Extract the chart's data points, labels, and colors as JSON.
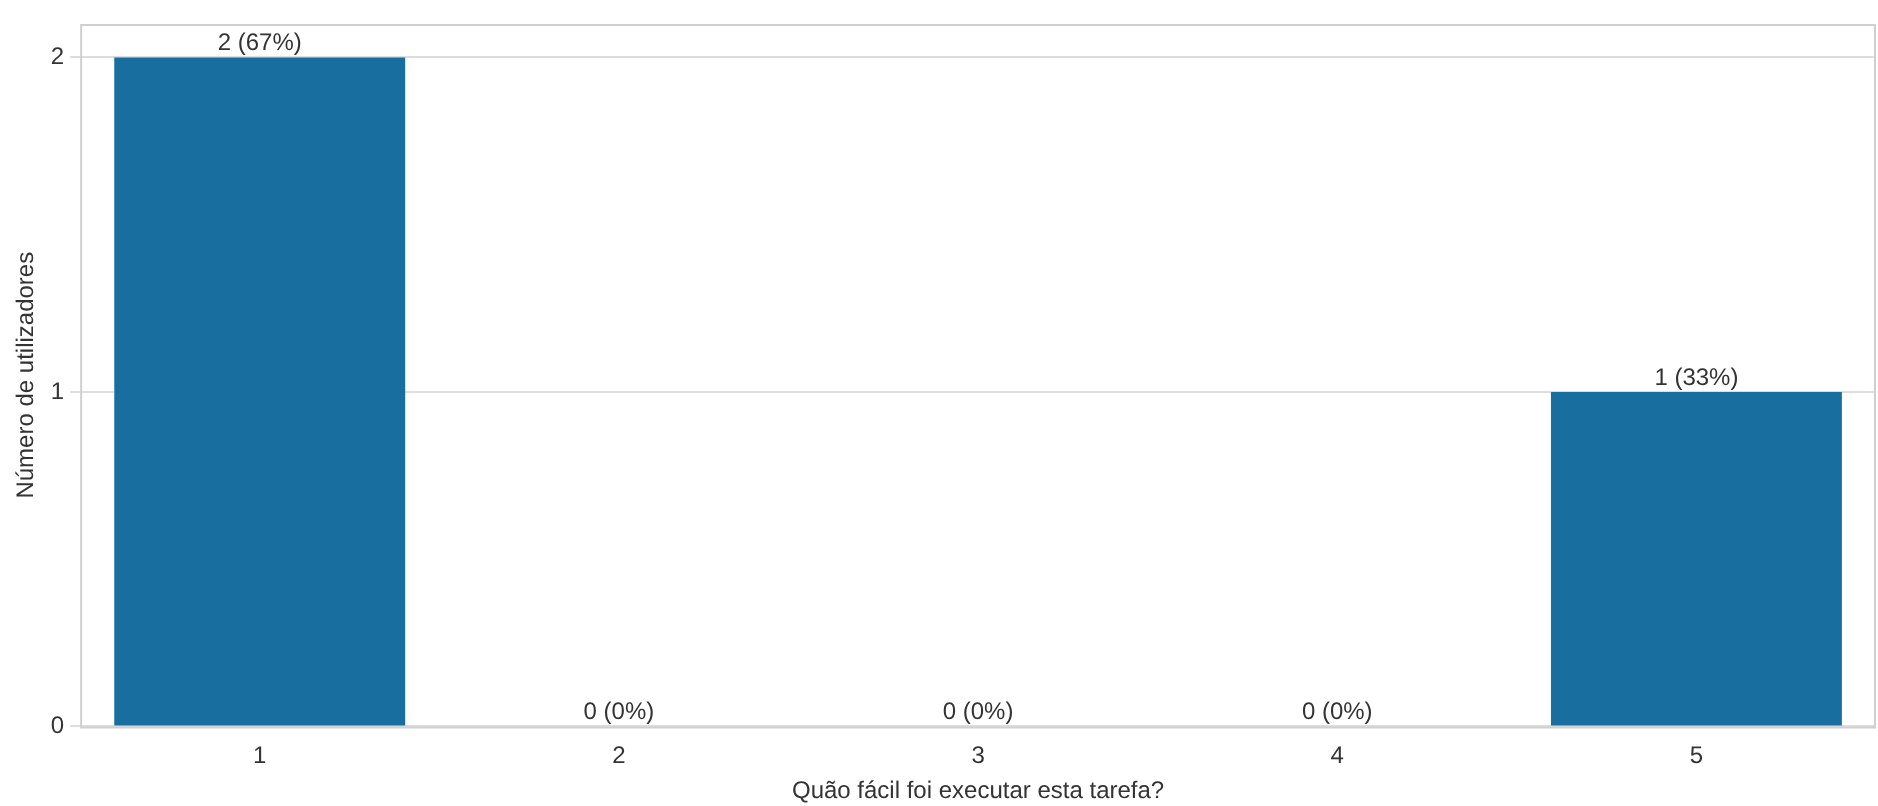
{
  "chart_data": {
    "type": "bar",
    "xlabel": "Quão fácil foi executar esta tarefa?",
    "ylabel": "Número de utilizadores",
    "categories": [
      "1",
      "2",
      "3",
      "4",
      "5"
    ],
    "values": [
      2,
      0,
      0,
      0,
      1
    ],
    "color": "#186f9f",
    "value_labels": [
      "2 (67%)",
      "0 (0%)",
      "0 (0%)",
      "0 (0%)",
      "1 (33%)"
    ],
    "ylim": [
      0,
      2.1
    ],
    "yticks": [
      0,
      1,
      2
    ],
    "grid": "y",
    "legend": false
  }
}
